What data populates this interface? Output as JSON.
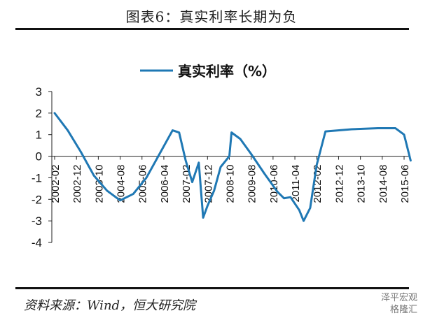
{
  "header": {
    "title": "图表6：真实利率长期为负"
  },
  "source": {
    "text": "资料来源：Wind，恒大研究院"
  },
  "watermark": {
    "line1": "泽平宏观",
    "line2": "格隆汇"
  },
  "colors": {
    "series": "#1f78b4",
    "axis": "#222222",
    "text": "#111111"
  },
  "chart_data": {
    "type": "line",
    "title": "",
    "xlabel": "",
    "ylabel": "",
    "ylim": [
      -4,
      3
    ],
    "yticks": [
      3,
      2,
      1,
      0,
      -1,
      -2,
      -3,
      -4
    ],
    "grid": false,
    "legend_position": "top-center",
    "x_tick_labels": [
      "2002-02",
      "2002-12",
      "2003-10",
      "2004-08",
      "2005-06",
      "2006-04",
      "2007-02",
      "2007-12",
      "2008-10",
      "2009-08",
      "2010-06",
      "2011-04",
      "2012-02",
      "2012-12",
      "2013-10",
      "2014-08",
      "2015-06"
    ],
    "series": [
      {
        "name": "真实利率（%）",
        "color": "#1f78b4",
        "points": [
          [
            "2002-02",
            2.0
          ],
          [
            "2002-08",
            1.2
          ],
          [
            "2003-02",
            0.2
          ],
          [
            "2003-08",
            -0.9
          ],
          [
            "2004-02",
            -1.6
          ],
          [
            "2004-08",
            -2.05
          ],
          [
            "2005-02",
            -1.75
          ],
          [
            "2005-08",
            -1.0
          ],
          [
            "2006-02",
            0.1
          ],
          [
            "2006-08",
            1.2
          ],
          [
            "2006-11",
            1.1
          ],
          [
            "2007-02",
            -0.2
          ],
          [
            "2007-05",
            -1.2
          ],
          [
            "2007-08",
            -0.3
          ],
          [
            "2007-10",
            -2.85
          ],
          [
            "2007-12",
            -2.3
          ],
          [
            "2008-03",
            -1.6
          ],
          [
            "2008-06",
            -0.5
          ],
          [
            "2008-10",
            0.0
          ],
          [
            "2008-11",
            1.1
          ],
          [
            "2009-03",
            0.8
          ],
          [
            "2009-08",
            0.1
          ],
          [
            "2010-02",
            -0.8
          ],
          [
            "2010-08",
            -1.65
          ],
          [
            "2010-11",
            -1.95
          ],
          [
            "2011-02",
            -1.9
          ],
          [
            "2011-06",
            -2.5
          ],
          [
            "2011-08",
            -3.0
          ],
          [
            "2011-11",
            -2.4
          ],
          [
            "2012-02",
            -0.4
          ],
          [
            "2012-06",
            1.15
          ],
          [
            "2013-06",
            1.25
          ],
          [
            "2014-06",
            1.3
          ],
          [
            "2015-02",
            1.3
          ],
          [
            "2015-06",
            1.0
          ],
          [
            "2015-09",
            -0.2
          ]
        ]
      }
    ]
  }
}
